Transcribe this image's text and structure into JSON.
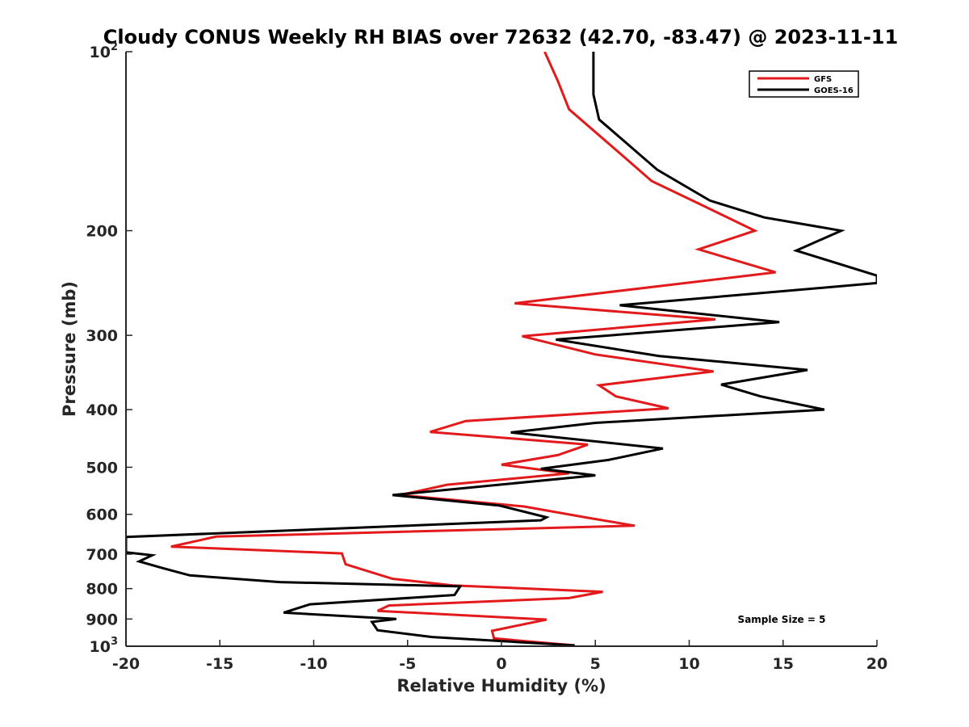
{
  "chart_data": {
    "type": "line",
    "title": "Cloudy CONUS Weekly RH BIAS over 72632 (42.70, -83.47) @ 2023-11-11",
    "xlabel": "Relative Humidity (%)",
    "ylabel": "Pressure (mb)",
    "xlim": [
      -20,
      20
    ],
    "ylim": [
      100,
      1000
    ],
    "y_scale": "log",
    "y_reversed": true,
    "x_ticks": [
      "-20",
      "-15",
      "-10",
      "-5",
      "0",
      "5",
      "10",
      "15",
      "20"
    ],
    "y_ticks": [
      {
        "value": 100,
        "base": "10",
        "exp": "2"
      },
      {
        "value": 200,
        "label": "200"
      },
      {
        "value": 300,
        "label": "300"
      },
      {
        "value": 400,
        "label": "400"
      },
      {
        "value": 500,
        "label": "500"
      },
      {
        "value": 600,
        "label": "600"
      },
      {
        "value": 700,
        "label": "700"
      },
      {
        "value": 800,
        "label": "800"
      },
      {
        "value": 900,
        "label": "900"
      },
      {
        "value": 1000,
        "base": "10",
        "exp": "3"
      }
    ],
    "legend_position": "top-right",
    "grid": false,
    "annotation": "Sample Size = 5",
    "series": [
      {
        "name": "GFS",
        "color": "#e31a1c",
        "points": [
          [
            2.3,
            100
          ],
          [
            3.0,
            112
          ],
          [
            3.6,
            125
          ],
          [
            6.5,
            150
          ],
          [
            8.0,
            165
          ],
          [
            10.5,
            180
          ],
          [
            13.5,
            200
          ],
          [
            10.5,
            215
          ],
          [
            14.6,
            235
          ],
          [
            0.7,
            265
          ],
          [
            11.4,
            282
          ],
          [
            1.1,
            301
          ],
          [
            5.0,
            323
          ],
          [
            11.3,
            345
          ],
          [
            5.2,
            364
          ],
          [
            6.1,
            380
          ],
          [
            8.9,
            398
          ],
          [
            -1.9,
            418
          ],
          [
            -3.8,
            436
          ],
          [
            4.6,
            458
          ],
          [
            3.0,
            477
          ],
          [
            0.0,
            495
          ],
          [
            3.6,
            512
          ],
          [
            -2.9,
            535
          ],
          [
            -5.4,
            557
          ],
          [
            1.2,
            582
          ],
          [
            4.6,
            608
          ],
          [
            7.1,
            627
          ],
          [
            -15.2,
            654
          ],
          [
            -17.6,
            680
          ],
          [
            -8.5,
            698
          ],
          [
            -8.3,
            728
          ],
          [
            -5.8,
            770
          ],
          [
            -2.6,
            790
          ],
          [
            5.4,
            810
          ],
          [
            3.6,
            830
          ],
          [
            -6.0,
            854
          ],
          [
            -6.6,
            872
          ],
          [
            2.4,
            902
          ],
          [
            -0.5,
            942
          ],
          [
            -0.4,
            970
          ],
          [
            3.9,
            997
          ]
        ]
      },
      {
        "name": "GOES-16",
        "color": "#000000",
        "points": [
          [
            4.9,
            100
          ],
          [
            4.9,
            118
          ],
          [
            5.2,
            130
          ],
          [
            8.3,
            158
          ],
          [
            11.1,
            178
          ],
          [
            14.0,
            190
          ],
          [
            18.1,
            200
          ],
          [
            15.7,
            216
          ],
          [
            20.0,
            238
          ],
          [
            20.0,
            245
          ],
          [
            6.3,
            267
          ],
          [
            14.8,
            285
          ],
          [
            2.9,
            305
          ],
          [
            8.4,
            325
          ],
          [
            16.3,
            343
          ],
          [
            11.7,
            363
          ],
          [
            13.8,
            380
          ],
          [
            17.2,
            400
          ],
          [
            5.0,
            421
          ],
          [
            0.5,
            437
          ],
          [
            8.6,
            465
          ],
          [
            5.7,
            486
          ],
          [
            2.1,
            503
          ],
          [
            5.0,
            516
          ],
          [
            -5.8,
            557
          ],
          [
            -0.1,
            580
          ],
          [
            2.4,
            607
          ],
          [
            2.1,
            614
          ],
          [
            -20.0,
            655
          ],
          [
            -20.0,
            695
          ],
          [
            -18.6,
            703
          ],
          [
            -19.3,
            720
          ],
          [
            -18.1,
            738
          ],
          [
            -16.6,
            760
          ],
          [
            -11.8,
            780
          ],
          [
            -2.2,
            793
          ],
          [
            -2.5,
            820
          ],
          [
            -10.2,
            850
          ],
          [
            -11.6,
            878
          ],
          [
            -5.6,
            900
          ],
          [
            -6.9,
            910
          ],
          [
            -6.6,
            940
          ],
          [
            -3.7,
            965
          ],
          [
            3.9,
            997
          ]
        ]
      }
    ]
  }
}
